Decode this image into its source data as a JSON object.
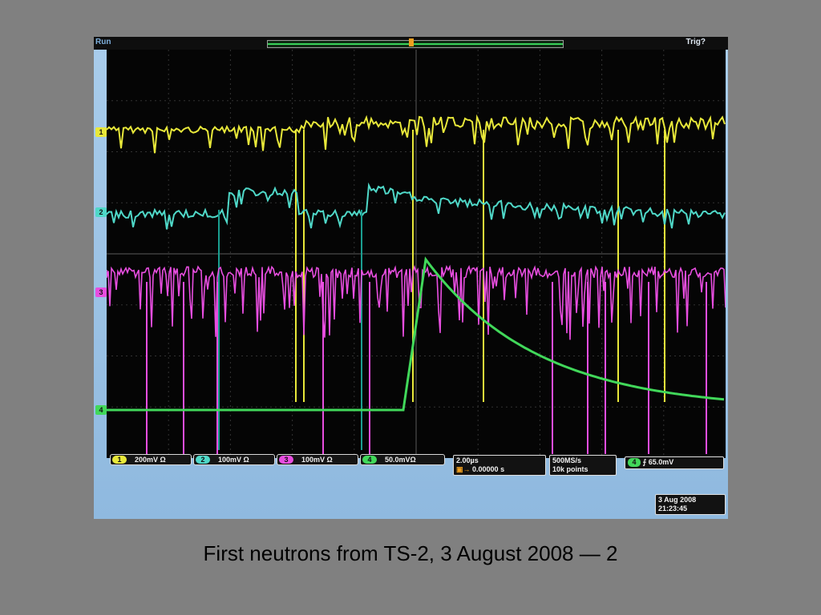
{
  "scope": {
    "run_status": "Run",
    "trigger_status": "Trig?",
    "channels": [
      {
        "number": "1",
        "scale": "200mV Ω",
        "color": "#e8e83a"
      },
      {
        "number": "2",
        "scale": "100mV Ω",
        "color": "#4fd8c8"
      },
      {
        "number": "3",
        "scale": "100mV Ω",
        "color": "#e84ee0"
      },
      {
        "number": "4",
        "scale": "50.0mVΩ",
        "color": "#41d85a"
      }
    ],
    "timebase": {
      "scale": "2.00µs",
      "position": "0.00000 s"
    },
    "acquisition": {
      "sample_rate": "500MS/s",
      "record_length": "10k points"
    },
    "trigger": {
      "source": "4",
      "slope_icon": "rising-edge-icon",
      "level": "65.0mV"
    },
    "datetime": {
      "date": "3 Aug 2008",
      "time": "21:23:45"
    }
  },
  "caption": "First neutrons from TS-2, 3 August 2008 — 2"
}
